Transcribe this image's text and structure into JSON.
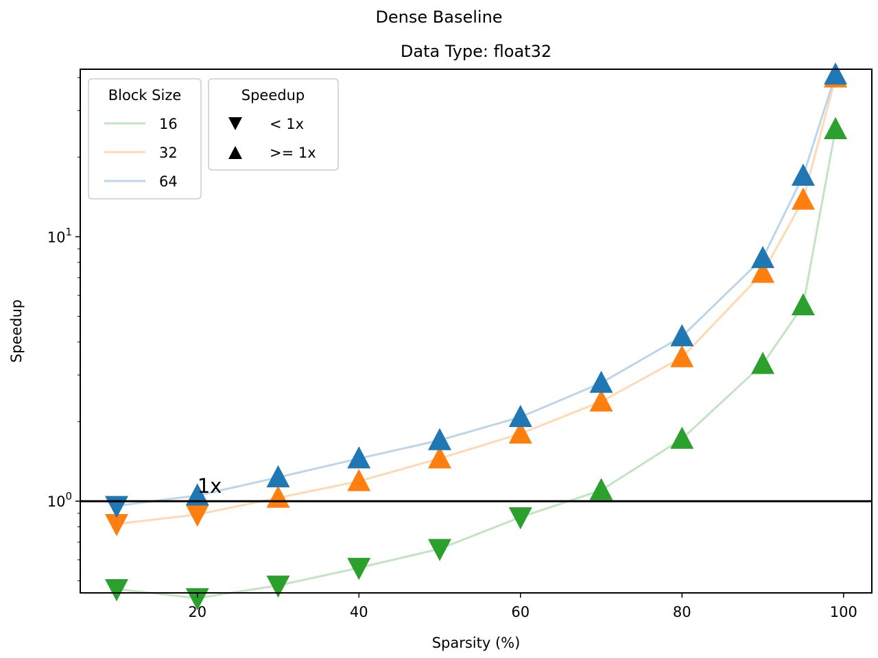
{
  "chart_data": {
    "type": "line",
    "suptitle": "Dense Baseline",
    "title": "Data Type: float32",
    "xlabel": "Sparsity (%)",
    "ylabel": "Speedup",
    "xlim": [
      5.5,
      103.5
    ],
    "ylim": [
      0.45,
      43
    ],
    "yscale": "log",
    "x_ticks": [
      20,
      40,
      60,
      80,
      100
    ],
    "x_tick_labels": [
      "20",
      "40",
      "60",
      "80",
      "100"
    ],
    "y_major_ticks": [
      1,
      10
    ],
    "y_tick_labels": [
      {
        "base": "10",
        "exp": "0"
      },
      {
        "base": "10",
        "exp": "1"
      }
    ],
    "reference_line": {
      "y": 1,
      "label": "1x",
      "label_x": 20
    },
    "x": [
      10,
      20,
      30,
      40,
      50,
      60,
      70,
      80,
      90,
      95,
      99
    ],
    "series": [
      {
        "name": "16",
        "color": "#2ca02c",
        "line_color": "#c2e4c2",
        "values": [
          0.465,
          0.43,
          0.48,
          0.56,
          0.66,
          0.87,
          1.1,
          1.72,
          3.3,
          5.5,
          25.5
        ]
      },
      {
        "name": "32",
        "color": "#ff7f0e",
        "line_color": "#ffd8b4",
        "values": [
          0.82,
          0.89,
          1.03,
          1.19,
          1.45,
          1.8,
          2.38,
          3.5,
          7.3,
          13.8,
          40.0
        ]
      },
      {
        "name": "64",
        "color": "#1f77b4",
        "line_color": "#bdd5e8",
        "values": [
          0.96,
          1.05,
          1.23,
          1.45,
          1.7,
          2.08,
          2.8,
          4.2,
          8.3,
          17.0,
          41.0
        ]
      }
    ],
    "legend_block": {
      "title": "Block Size",
      "placement": "top-left",
      "entries": [
        "16",
        "32",
        "64"
      ]
    },
    "legend_speedup": {
      "title": "Speedup",
      "entries": [
        {
          "marker": "down-triangle-icon",
          "label": "< 1x"
        },
        {
          "marker": "up-triangle-icon",
          "label": ">= 1x"
        }
      ]
    },
    "grid": false
  }
}
